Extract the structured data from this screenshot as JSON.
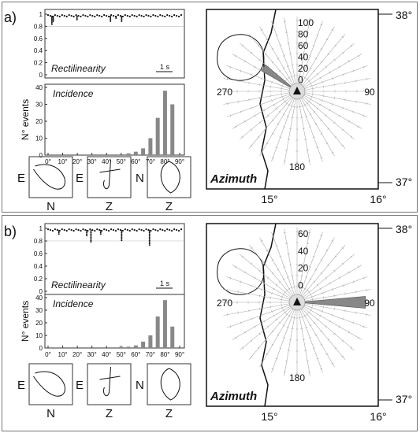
{
  "figure": {
    "panels": [
      {
        "label": "a)",
        "rectilinearity": {
          "label": "Rectilinearity",
          "yticks": [
            "1",
            "0.8",
            "0.6",
            "0.4",
            "0.2",
            "0"
          ],
          "scale_label": "1 s",
          "dips": [
            [
              0.05,
              0.82
            ],
            [
              0.06,
              0.88
            ],
            [
              0.23,
              0.9
            ],
            [
              0.47,
              0.88
            ],
            [
              0.51,
              0.91
            ],
            [
              0.55,
              0.86
            ]
          ]
        },
        "incidence": {
          "label": "Incidence",
          "ylabel": "N° events",
          "yticks": [
            "40",
            "30",
            "20",
            "10",
            "0"
          ],
          "xticks": [
            "0°",
            "10°",
            "20°",
            "30°",
            "40°",
            "50°",
            "60°",
            "70°",
            "80°",
            "90°"
          ]
        },
        "hodograms": [
          {
            "left": "E",
            "bottom": "N"
          },
          {
            "left": "E",
            "bottom": "Z"
          },
          {
            "left": "N",
            "bottom": "Z"
          }
        ],
        "map": {
          "lat_labels": [
            "38°",
            "37°"
          ],
          "lon_labels": [
            "15°",
            "16°"
          ],
          "title": "Azimuth",
          "rose_ring_labels": [
            "100",
            "80",
            "60",
            "40",
            "20",
            "0"
          ],
          "rose_dir_labels": {
            "north": "0",
            "east": "90",
            "south": "180",
            "west": "270"
          }
        }
      },
      {
        "label": "b)",
        "rectilinearity": {
          "label": "Rectilinearity",
          "yticks": [
            "1",
            "0.8",
            "0.6",
            "0.4",
            "0.2",
            "0"
          ],
          "scale_label": "1 s",
          "dips": [
            [
              0.1,
              0.9
            ],
            [
              0.3,
              0.88
            ],
            [
              0.33,
              0.78
            ],
            [
              0.4,
              0.9
            ],
            [
              0.55,
              0.8
            ],
            [
              0.75,
              0.72
            ]
          ]
        },
        "incidence": {
          "label": "Incidence",
          "ylabel": "N° events",
          "yticks": [
            "40",
            "30",
            "20",
            "10",
            "0"
          ],
          "xticks": [
            "0°",
            "10°",
            "20°",
            "30°",
            "40°",
            "50°",
            "60°",
            "70°",
            "80°",
            "90°"
          ]
        },
        "hodograms": [
          {
            "left": "E",
            "bottom": "N"
          },
          {
            "left": "E",
            "bottom": "Z"
          },
          {
            "left": "N",
            "bottom": "Z"
          }
        ],
        "map": {
          "lat_labels": [
            "38°",
            "37°"
          ],
          "lon_labels": [
            "15°",
            "16°"
          ],
          "title": "Azimuth",
          "rose_ring_labels": [
            "60",
            "40",
            "20",
            "0"
          ],
          "rose_dir_labels": {
            "north": "0",
            "east": "90",
            "south": "180",
            "west": "270"
          }
        }
      }
    ]
  },
  "chart_data": [
    {
      "type": "bar",
      "panel": "a",
      "title": "Incidence",
      "ylabel": "N° events",
      "x": [
        55,
        60,
        65,
        70,
        75,
        80,
        85
      ],
      "values": [
        1,
        2,
        4,
        10,
        22,
        38,
        30
      ],
      "xlim": [
        0,
        90
      ],
      "ylim": [
        0,
        40
      ]
    },
    {
      "type": "bar",
      "panel": "b",
      "title": "Incidence",
      "ylabel": "N° events",
      "x": [
        50,
        55,
        60,
        65,
        70,
        75,
        80,
        85
      ],
      "values": [
        1,
        1,
        2,
        5,
        10,
        25,
        38,
        17
      ],
      "xlim": [
        0,
        90
      ],
      "ylim": [
        0,
        40
      ]
    },
    {
      "type": "rose",
      "panel": "a",
      "title": "Azimuth",
      "dominant_azimuth_range": [
        300,
        310
      ],
      "dominant_value": 60,
      "rlim": [
        0,
        100
      ]
    },
    {
      "type": "rose",
      "panel": "b",
      "title": "Azimuth",
      "dominant_azimuth_range": [
        85,
        95
      ],
      "dominant_value": 60,
      "rlim": [
        0,
        60
      ]
    }
  ]
}
